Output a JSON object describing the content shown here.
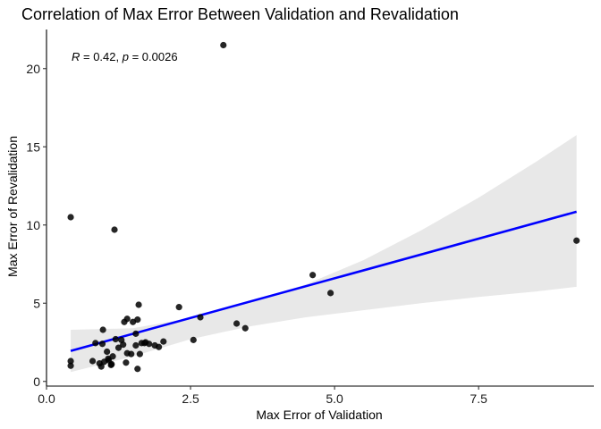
{
  "chart_data": {
    "type": "scatter",
    "title": "Correlation of Max Error Between Validation and Revalidation",
    "xlabel": "Max Error of Validation",
    "ylabel": "Max Error of Revalidation",
    "xlim": [
      0,
      9.5
    ],
    "ylim": [
      -0.3,
      22.5
    ],
    "x_ticks": [
      0.0,
      2.5,
      5.0,
      7.5
    ],
    "x_tick_labels": [
      "0.0",
      "2.5",
      "5.0",
      "7.5"
    ],
    "y_ticks": [
      0,
      5,
      10,
      15,
      20
    ],
    "y_tick_labels": [
      "0",
      "5",
      "10",
      "15",
      "20"
    ],
    "grid": false,
    "annotation": {
      "r_symbol": "R",
      "r_text": " = 0.42, ",
      "p_symbol": "p",
      "p_text": " = 0.0026"
    },
    "point_color": "#000000",
    "line_color": "#0000ff",
    "band_color": "#e8e8e8",
    "regression": {
      "x_start": 0.42,
      "x_end": 9.2,
      "y_start": 1.95,
      "y_end": 10.85
    },
    "confidence_band": {
      "x": [
        0.42,
        1.5,
        2.5,
        3.5,
        4.5,
        5.5,
        6.5,
        7.5,
        8.5,
        9.2
      ],
      "lower": [
        0.6,
        1.6,
        2.7,
        3.5,
        4.1,
        4.55,
        5.0,
        5.4,
        5.75,
        6.05
      ],
      "upper": [
        3.3,
        3.4,
        4.05,
        5.05,
        6.2,
        7.75,
        9.65,
        11.75,
        14.05,
        15.75
      ]
    },
    "points": {
      "x": [
        0.42,
        0.42,
        0.42,
        3.07,
        1.18,
        9.2,
        4.62,
        4.93,
        1.6,
        2.3,
        2.67,
        0.98,
        1.4,
        1.5,
        1.58,
        1.35,
        3.3,
        3.45,
        1.55,
        2.55,
        1.2,
        1.3,
        1.65,
        1.72,
        1.78,
        1.88,
        1.95,
        2.03,
        0.85,
        0.97,
        1.05,
        1.25,
        1.33,
        1.4,
        1.47,
        1.55,
        1.62,
        1.7,
        0.8,
        0.92,
        1.0,
        1.07,
        1.13,
        0.95,
        1.08,
        1.15,
        1.38,
        1.58,
        1.12
      ],
      "y": [
        10.5,
        1.3,
        1.0,
        21.5,
        9.7,
        9.0,
        6.8,
        5.65,
        4.9,
        4.75,
        4.1,
        3.3,
        4.0,
        3.8,
        3.95,
        3.8,
        3.7,
        3.4,
        3.05,
        2.65,
        2.7,
        2.65,
        2.45,
        2.5,
        2.4,
        2.3,
        2.2,
        2.55,
        2.45,
        2.4,
        1.9,
        2.15,
        2.35,
        1.8,
        1.75,
        2.3,
        1.75,
        2.45,
        1.3,
        1.15,
        1.25,
        1.45,
        1.1,
        0.95,
        1.35,
        1.6,
        1.2,
        0.8,
        1.05
      ]
    }
  }
}
